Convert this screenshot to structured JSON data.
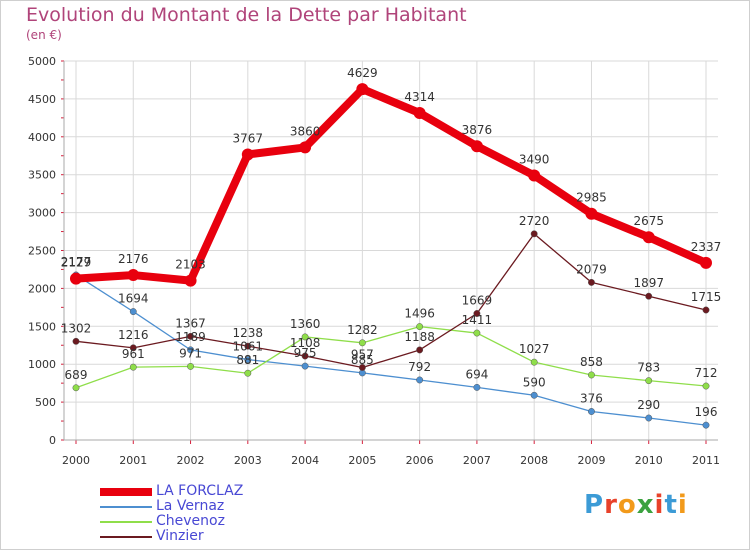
{
  "title": "Evolution du Montant de la Dette par Habitant",
  "subtitle": "(en €)",
  "logo": {
    "text": "Proxiti",
    "letters": [
      "P",
      "r",
      "o",
      "x",
      "i",
      "t",
      "i"
    ],
    "colors": [
      "#3c9bd6",
      "#e8412a",
      "#f29a1b",
      "#3ba23f",
      "#e8412a",
      "#3c9bd6",
      "#f29a1b"
    ]
  },
  "chart_data": {
    "type": "line",
    "categories": [
      "2000",
      "2001",
      "2002",
      "2003",
      "2004",
      "2005",
      "2006",
      "2007",
      "2008",
      "2009",
      "2010",
      "2011"
    ],
    "ylim": [
      0,
      5000
    ],
    "yticks": [
      0,
      500,
      1000,
      1500,
      2000,
      2500,
      3000,
      3500,
      4000,
      4500,
      5000
    ],
    "grid": true,
    "legend_position": "bottom-left",
    "series": [
      {
        "name": "LA FORCLAZ",
        "color": "#e8000e",
        "values": [
          2129,
          2176,
          2103,
          3767,
          3860,
          4629,
          4314,
          3876,
          3490,
          2985,
          2675,
          2337
        ]
      },
      {
        "name": "La Vernaz",
        "color": "#4d8fd0",
        "values": [
          2177,
          1694,
          1189,
          1061,
          975,
          885,
          792,
          694,
          590,
          376,
          290,
          196
        ]
      },
      {
        "name": "Chevenoz",
        "color": "#8fde4a",
        "values": [
          689,
          961,
          971,
          881,
          1360,
          1282,
          1496,
          1411,
          1027,
          858,
          783,
          712
        ]
      },
      {
        "name": "Vinzier",
        "color": "#6b1a20",
        "values": [
          1302,
          1216,
          1367,
          1238,
          1108,
          957,
          1188,
          1669,
          2720,
          2079,
          1897,
          1715
        ]
      }
    ]
  }
}
